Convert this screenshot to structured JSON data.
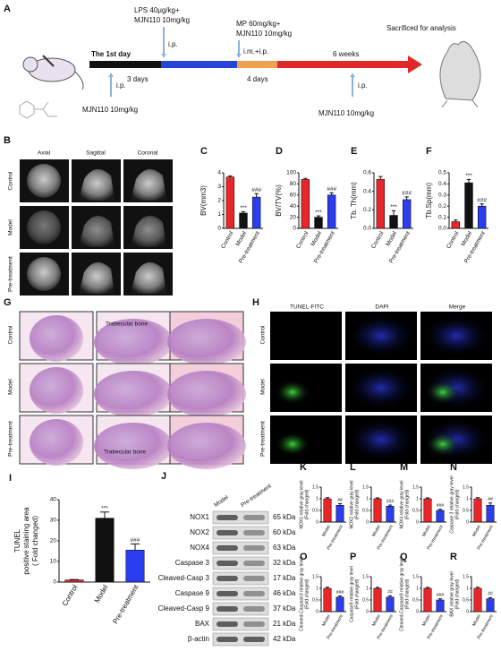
{
  "timeline": {
    "panel": "A",
    "day1": "The 1st day",
    "lps": [
      "LPS 40μg/kg+",
      "MJN110 10mg/kg"
    ],
    "lps_route": "i.p.",
    "mp": [
      "MP 60mg/kg+",
      "MJN110 10mg/kg"
    ],
    "mp_route": "i.m.+i.p.",
    "first_route": "i.p.",
    "first_dose": "MJN110 10mg/kg",
    "period1": "3 days",
    "period2": "4 days",
    "period3": "6 weeks",
    "end": "Sacrificed for analysis",
    "late_route": "i.p.",
    "late_dose": "MJN110 10mg/kg"
  },
  "microct": {
    "panel": "B",
    "columns": [
      "Axial",
      "Sagittal",
      "Coronal"
    ],
    "rows": [
      "Control",
      "Model",
      "Pre-treatment"
    ]
  },
  "histology": {
    "panel": "G",
    "rows": [
      "Control",
      "Model",
      "Pre-treatment"
    ],
    "annotations": [
      "Trabecular bone",
      "Trabecular bone"
    ]
  },
  "fluorescence": {
    "panel": "H",
    "columns": [
      "TUNEL-FITC",
      "DAPI",
      "Merge"
    ],
    "rows": [
      "Control",
      "Model",
      "Pre-treatment"
    ]
  },
  "blot": {
    "panel": "J",
    "columns": [
      "Model",
      "Pre-treatment"
    ],
    "proteins": [
      {
        "name": "NOX1",
        "kda": "65 kDa"
      },
      {
        "name": "NOX2",
        "kda": "60 kDa"
      },
      {
        "name": "NOX4",
        "kda": "63 kDa"
      },
      {
        "name": "Caspase 3",
        "kda": "32 kDa"
      },
      {
        "name": "Cleaved-Casp 3",
        "kda": "17 kDa"
      },
      {
        "name": "Caspase 9",
        "kda": "46 kDa"
      },
      {
        "name": "Cleaved-Casp 9",
        "kda": "37 kDa"
      },
      {
        "name": "BAX",
        "kda": "21 kDa"
      },
      {
        "name": "β-actin",
        "kda": "42 kDa"
      }
    ]
  },
  "chart_data": [
    {
      "type": "bar",
      "panel": "C",
      "ylabel": [
        "BV(mm3)"
      ],
      "categories": [
        "Control",
        "Model",
        "Pre-treatment"
      ],
      "values": [
        3.7,
        1.1,
        2.25
      ],
      "errors": [
        0.08,
        0.1,
        0.25
      ],
      "annotations": [
        null,
        "***",
        "###"
      ],
      "colors": [
        "#e8262a",
        "#111111",
        "#2a3df0"
      ],
      "ylim": [
        0,
        4
      ],
      "yticks": [
        0,
        1,
        2,
        3,
        4
      ]
    },
    {
      "type": "bar",
      "panel": "D",
      "ylabel": [
        "BV/TV(%)"
      ],
      "categories": [
        "Control",
        "Model",
        "Pre-treatment"
      ],
      "values": [
        88,
        20,
        60
      ],
      "errors": [
        2,
        2.5,
        4
      ],
      "annotations": [
        null,
        "***",
        "###"
      ],
      "colors": [
        "#e8262a",
        "#111111",
        "#2a3df0"
      ],
      "ylim": [
        0,
        100
      ],
      "yticks": [
        0,
        20,
        40,
        60,
        80,
        100
      ]
    },
    {
      "type": "bar",
      "panel": "E",
      "ylabel": [
        "Tb. Th(mm)"
      ],
      "categories": [
        "Control",
        "Model",
        "Pre-treatment"
      ],
      "values": [
        0.53,
        0.14,
        0.31
      ],
      "errors": [
        0.03,
        0.05,
        0.03
      ],
      "annotations": [
        null,
        "***",
        "###"
      ],
      "colors": [
        "#e8262a",
        "#111111",
        "#2a3df0"
      ],
      "ylim": [
        0,
        0.6
      ],
      "yticks": [
        {
          "value": 0,
          "label": "0.0"
        },
        0.2,
        0.4,
        0.6
      ]
    },
    {
      "type": "bar",
      "panel": "F",
      "ylabel": [
        "Tb.Sp(mm)"
      ],
      "categories": [
        "Control",
        "Model",
        "Pre-treatment"
      ],
      "values": [
        0.06,
        0.41,
        0.2
      ],
      "errors": [
        0.015,
        0.03,
        0.02
      ],
      "annotations": [
        null,
        "***",
        "###"
      ],
      "colors": [
        "#e8262a",
        "#111111",
        "#2a3df0"
      ],
      "ylim": [
        0,
        0.5
      ],
      "yticks": [
        {
          "value": 0,
          "label": "0.0"
        },
        0.1,
        0.2,
        0.3,
        0.4,
        0.5
      ]
    },
    {
      "type": "bar",
      "panel": "I",
      "ylabel": [
        "TUNEL",
        "positive staining area",
        "( Fold changed)"
      ],
      "categories": [
        "Control",
        "Model",
        "Pre-treatment"
      ],
      "values": [
        1,
        31,
        15.5
      ],
      "errors": [
        0.2,
        3,
        3
      ],
      "annotations": [
        null,
        "***",
        "###"
      ],
      "colors": [
        "#e8262a",
        "#111111",
        "#2a3df0"
      ],
      "ylim": [
        0,
        40
      ],
      "yticks": [
        0,
        10,
        20,
        30,
        40
      ]
    },
    {
      "type": "bar",
      "panel": "K",
      "ylabel": [
        "NOX1 relative gray level",
        "(Fold changed)"
      ],
      "categories": [
        "Model",
        "Pre-treatment"
      ],
      "values": [
        1.0,
        0.72
      ],
      "errors": [
        0.05,
        0.07
      ],
      "annotations": [
        null,
        "##"
      ],
      "colors": [
        "#e8262a",
        "#2a3df0"
      ],
      "ylim": [
        0,
        1.5
      ],
      "yticks": [
        0,
        0.5,
        1,
        1.5
      ]
    },
    {
      "type": "bar",
      "panel": "L",
      "ylabel": [
        "NOX2 relative gray level",
        "(Fold changed)"
      ],
      "categories": [
        "Model",
        "Pre-treatment"
      ],
      "values": [
        1.0,
        0.68
      ],
      "errors": [
        0.04,
        0.05
      ],
      "annotations": [
        null,
        "###"
      ],
      "colors": [
        "#e8262a",
        "#2a3df0"
      ],
      "ylim": [
        0,
        1.5
      ],
      "yticks": [
        0,
        0.5,
        1,
        1.5
      ]
    },
    {
      "type": "bar",
      "panel": "M",
      "ylabel": [
        "NOX4 relative gray level",
        "(Fold changed)"
      ],
      "categories": [
        "Model",
        "Pre-treatment"
      ],
      "values": [
        1.0,
        0.5
      ],
      "errors": [
        0.04,
        0.05
      ],
      "annotations": [
        null,
        "###"
      ],
      "colors": [
        "#e8262a",
        "#2a3df0"
      ],
      "ylim": [
        0,
        1.5
      ],
      "yticks": [
        0,
        0.5,
        1,
        1.5
      ]
    },
    {
      "type": "bar",
      "panel": "N",
      "ylabel": [
        "Caspase 3 relative gray level",
        "(Fold changed)"
      ],
      "categories": [
        "Model",
        "Pre-treatment"
      ],
      "values": [
        1.0,
        0.72
      ],
      "errors": [
        0.05,
        0.1
      ],
      "annotations": [
        null,
        "##"
      ],
      "colors": [
        "#e8262a",
        "#2a3df0"
      ],
      "ylim": [
        0,
        1.5
      ],
      "yticks": [
        0,
        0.5,
        1,
        1.5
      ]
    },
    {
      "type": "bar",
      "panel": "O",
      "ylabel": [
        "Cleaved-Caspase3 relative gray level",
        "(Fold changed)"
      ],
      "categories": [
        "Model",
        "Pre-treatment"
      ],
      "values": [
        1.0,
        0.62
      ],
      "errors": [
        0.05,
        0.05
      ],
      "annotations": [
        null,
        "###"
      ],
      "colors": [
        "#e8262a",
        "#2a3df0"
      ],
      "ylim": [
        0,
        1.5
      ],
      "yticks": [
        0,
        0.5,
        1,
        1.5
      ]
    },
    {
      "type": "bar",
      "panel": "P",
      "ylabel": [
        "Caspase9 relative gray level",
        "(Fold changed)"
      ],
      "categories": [
        "Model",
        "Pre-treatment"
      ],
      "values": [
        1.0,
        0.62
      ],
      "errors": [
        0.04,
        0.06
      ],
      "annotations": [
        null,
        "##"
      ],
      "colors": [
        "#e8262a",
        "#2a3df0"
      ],
      "ylim": [
        0,
        1.5
      ],
      "yticks": [
        0,
        0.5,
        1,
        1.5
      ]
    },
    {
      "type": "bar",
      "panel": "Q",
      "ylabel": [
        "Cleaved-Caspase9 relative gray level",
        "(Fold changed)"
      ],
      "categories": [
        "Model",
        "Pre-treatment"
      ],
      "values": [
        1.0,
        0.5
      ],
      "errors": [
        0.04,
        0.05
      ],
      "annotations": [
        null,
        "###"
      ],
      "colors": [
        "#e8262a",
        "#2a3df0"
      ],
      "ylim": [
        0,
        1.5
      ],
      "yticks": [
        0,
        0.5,
        1,
        1.5
      ]
    },
    {
      "type": "bar",
      "panel": "R",
      "ylabel": [
        "BAX relative gray level",
        "(Fold changed)"
      ],
      "categories": [
        "Model",
        "Pre-treatment"
      ],
      "values": [
        1.0,
        0.55
      ],
      "errors": [
        0.05,
        0.05
      ],
      "annotations": [
        null,
        "##"
      ],
      "colors": [
        "#e8262a",
        "#2a3df0"
      ],
      "ylim": [
        0,
        1.5
      ],
      "yticks": [
        0,
        0.5,
        1,
        1.5
      ]
    }
  ]
}
